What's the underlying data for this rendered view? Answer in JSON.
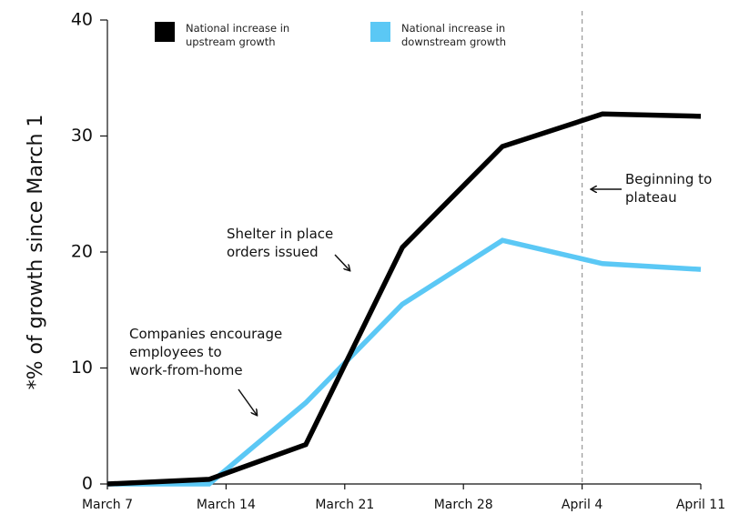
{
  "chart_data": {
    "type": "line",
    "y_label": "*% of growth since March 1",
    "x": [
      0,
      6,
      11.7,
      17.4,
      23.3,
      29.2,
      35
    ],
    "xlim": [
      0,
      35
    ],
    "xticks": [
      {
        "value": 0,
        "label": "March 7"
      },
      {
        "value": 7,
        "label": "March 14"
      },
      {
        "value": 14,
        "label": "March 21"
      },
      {
        "value": 21,
        "label": "March 28"
      },
      {
        "value": 28,
        "label": "April 4"
      },
      {
        "value": 35,
        "label": "April 11"
      }
    ],
    "ylim": [
      0,
      40
    ],
    "yticks": [
      0,
      10,
      20,
      30,
      40
    ],
    "series": [
      {
        "name": "National increase in upstream growth",
        "color": "#000000",
        "values": [
          0,
          0.4,
          3.4,
          20.4,
          29.1,
          31.9,
          31.7
        ]
      },
      {
        "name": "National increase in downstream growth",
        "color": "#5bc8f5",
        "values": [
          0,
          0,
          7.0,
          15.5,
          21.0,
          19.0,
          18.5
        ]
      }
    ],
    "reference_line_x": 28,
    "annotations": [
      [
        "Companies encourage",
        "employees to",
        "work-from-home"
      ],
      [
        "Shelter in place",
        "orders issued"
      ],
      [
        "Beginning to",
        "plateau"
      ]
    ]
  }
}
